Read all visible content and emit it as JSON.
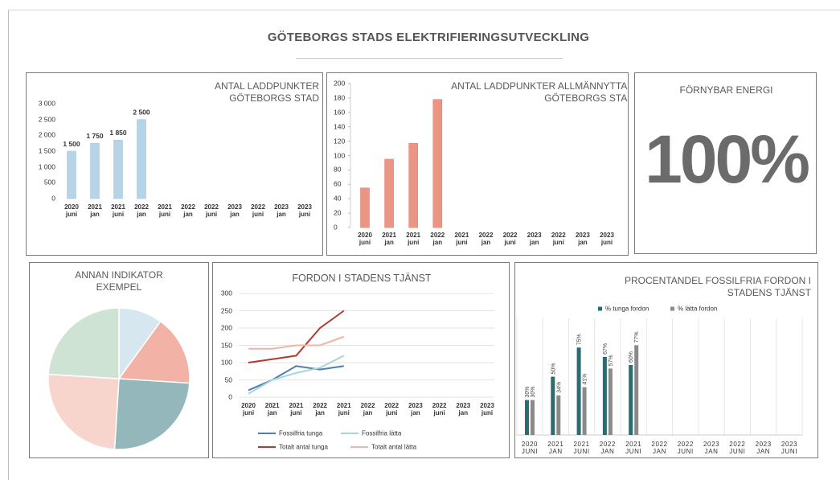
{
  "title": "GÖTEBORGS STADS ELEKTRIFIERINGSUTVECKLING",
  "chart_data": [
    {
      "type": "bar",
      "title": "ANTAL LADDPUNKTER GÖTEBORGS STAD",
      "categories": [
        "2020 juni",
        "2021 jan",
        "2021 juni",
        "2022 jan",
        "2021 juni",
        "2022 jan",
        "2022 juni",
        "2023 jan",
        "2022 juni",
        "2023 jan",
        "2023 juni"
      ],
      "values": [
        1500,
        1750,
        1850,
        2500,
        null,
        null,
        null,
        null,
        null,
        null,
        null
      ],
      "value_labels": [
        "1 500",
        "1 750",
        "1 850",
        "2 500",
        null,
        null,
        null,
        null,
        null,
        null,
        null
      ],
      "color": "#a9cce0",
      "ylim": [
        0,
        3000
      ],
      "yticks": [
        0,
        500,
        {
          "value": 1000,
          "label": "1 000"
        },
        {
          "value": 1500,
          "label": "1 500"
        },
        {
          "value": 2000,
          "label": "2 000"
        },
        {
          "value": 2500,
          "label": "2 500"
        },
        {
          "value": 3000,
          "label": "3 000"
        }
      ],
      "grid": false
    },
    {
      "type": "bar",
      "title": "ANTAL LADDPUNKTER ALLMÄNNYTTAN GÖTEBORGS STAD",
      "categories": [
        "2020 juni",
        "2021 jan",
        "2021 juni",
        "2022 jan",
        "2021 juni",
        "2022 jan",
        "2022 juni",
        "2023 jan",
        "2022 juni",
        "2023 jan",
        "2023 juni"
      ],
      "values": [
        55,
        95,
        117,
        178,
        null,
        null,
        null,
        null,
        null,
        null,
        null
      ],
      "color": "#e8826e",
      "ylim": [
        0,
        200
      ],
      "yticks": [
        0,
        20,
        40,
        60,
        80,
        100,
        120,
        140,
        160,
        180,
        200
      ],
      "grid": false
    },
    {
      "type": "kpi",
      "title": "FÖRNYBAR ENERGI",
      "value": 100,
      "value_label": "100%",
      "color": "#6b6b6b"
    },
    {
      "type": "pie",
      "title": "ANNAN INDIKATOR EXEMPEL",
      "values": [
        10,
        16,
        25,
        25,
        24
      ],
      "colors": [
        "#d6e7f0",
        "#f2b3a6",
        "#93b7bb",
        "#f7d5cc",
        "#cfe3d5"
      ]
    },
    {
      "type": "line",
      "title": "FORDON I STADENS TJÄNST",
      "categories": [
        "2020 juni",
        "2021 jan",
        "2021 juni",
        "2022 jan",
        "2021 juni",
        "2022 jan",
        "2022 juni",
        "2023 jan",
        "2022 juni",
        "2023 jan",
        "2023 juni"
      ],
      "series": [
        {
          "name": "Fossilfria tunga",
          "color": "#4a7fb0",
          "values": [
            20,
            50,
            90,
            80,
            90,
            null,
            null,
            null,
            null,
            null,
            null
          ]
        },
        {
          "name": "Fossilfria lätta",
          "color": "#a8d5d8",
          "values": [
            10,
            50,
            70,
            85,
            120,
            null,
            null,
            null,
            null,
            null,
            null
          ]
        },
        {
          "name": "Totalt antal tunga",
          "color": "#b03a2e",
          "values": [
            100,
            110,
            120,
            200,
            250,
            null,
            null,
            null,
            null,
            null,
            null
          ]
        },
        {
          "name": "Totalt antal lätta",
          "color": "#f0b4a8",
          "values": [
            140,
            140,
            150,
            150,
            175,
            null,
            null,
            null,
            null,
            null,
            null
          ]
        }
      ],
      "ylim": [
        0,
        300
      ],
      "yticks": [
        0,
        50,
        100,
        150,
        200,
        250,
        300
      ],
      "grid": true
    },
    {
      "type": "bar",
      "title": "PROCENTANDEL FOSSILFRIA FORDON I STADENS TJÄNST",
      "categories": [
        "2020 JUNI",
        "2021 JAN",
        "2021 JUNI",
        "2022 JAN",
        "2021 JUNI",
        "2022 JAN",
        "2022 JUNI",
        "2023 JAN",
        "2022 JUNI",
        "2023 JAN",
        "2023 JUNI"
      ],
      "series": [
        {
          "name": "% tunga fordon",
          "color": "#2e6b6e",
          "values": [
            30,
            50,
            75,
            67,
            60,
            null,
            null,
            null,
            null,
            null,
            null
          ],
          "value_labels": [
            "30%",
            "50%",
            "75%",
            "67%",
            "60%",
            null,
            null,
            null,
            null,
            null,
            null
          ]
        },
        {
          "name": "% lätta fordon",
          "color": "#8a8a8a",
          "values": [
            30,
            34,
            41,
            57,
            77,
            null,
            null,
            null,
            null,
            null,
            null
          ],
          "value_labels": [
            "30%",
            "34%",
            "41%",
            "57%",
            "77%",
            null,
            null,
            null,
            null,
            null,
            null
          ]
        }
      ],
      "ylim": [
        0,
        100
      ],
      "grid": false
    }
  ]
}
